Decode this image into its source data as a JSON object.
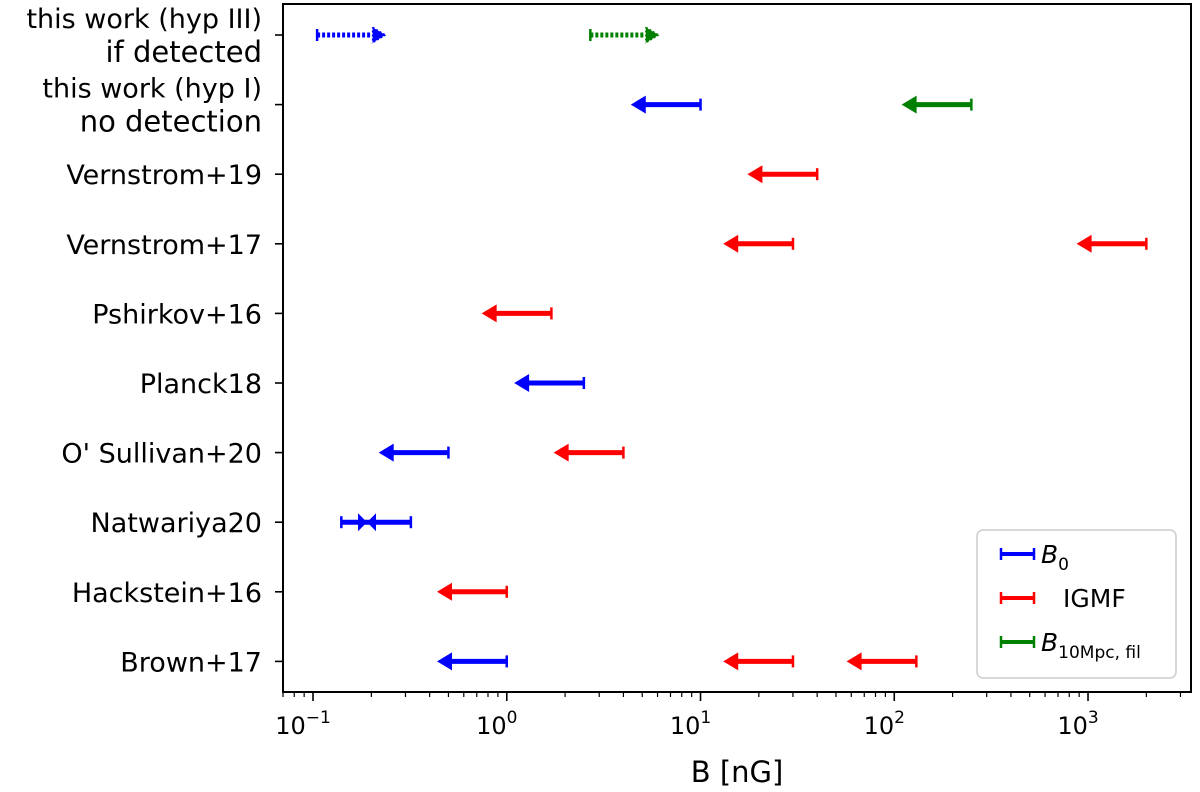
{
  "chart_data": {
    "type": "errorbar",
    "xlabel": "B [nG]",
    "xscale": "log",
    "xlim": [
      0.07,
      3400
    ],
    "x_ticks": [
      {
        "value": 0.1,
        "base": "10",
        "exp": "−1"
      },
      {
        "value": 1,
        "base": "10",
        "exp": "0"
      },
      {
        "value": 10,
        "base": "10",
        "exp": "1"
      },
      {
        "value": 100,
        "base": "10",
        "exp": "2"
      },
      {
        "value": 1000,
        "base": "10",
        "exp": "3"
      }
    ],
    "categories": [
      {
        "label": "this work (hyp III)",
        "sublabel": "if detected"
      },
      {
        "label": "this work (hyp I)",
        "sublabel": "no detection"
      },
      {
        "label": "Vernstrom+19",
        "sublabel": ""
      },
      {
        "label": "Vernstrom+17",
        "sublabel": ""
      },
      {
        "label": "Pshirkov+16",
        "sublabel": ""
      },
      {
        "label": "Planck18",
        "sublabel": ""
      },
      {
        "label": "O' Sullivan+20",
        "sublabel": ""
      },
      {
        "label": "Natwariya20",
        "sublabel": ""
      },
      {
        "label": "Hackstein+16",
        "sublabel": ""
      },
      {
        "label": "Brown+17",
        "sublabel": ""
      }
    ],
    "series": [
      {
        "name_base": "B",
        "name_sub": "0",
        "color": "#0000ff"
      },
      {
        "name_base": "IGMF",
        "name_sub": "",
        "color": "#ff0000"
      },
      {
        "name_base": "B",
        "name_sub": "10Mpc, fil",
        "color": "#008000"
      }
    ],
    "marks": [
      {
        "row": 0,
        "series": 0,
        "kind": "lower_limit",
        "style": "dotted",
        "value": 0.105
      },
      {
        "row": 0,
        "series": 2,
        "kind": "lower_limit",
        "style": "dotted",
        "value": 2.7
      },
      {
        "row": 1,
        "series": 0,
        "kind": "upper_limit",
        "value": 10
      },
      {
        "row": 1,
        "series": 2,
        "kind": "upper_limit",
        "value": 250
      },
      {
        "row": 2,
        "series": 1,
        "kind": "upper_limit",
        "value": 40
      },
      {
        "row": 3,
        "series": 1,
        "kind": "upper_limit",
        "value": 30
      },
      {
        "row": 3,
        "series": 1,
        "kind": "upper_limit",
        "value": 2000
      },
      {
        "row": 4,
        "series": 1,
        "kind": "upper_limit",
        "value": 1.7
      },
      {
        "row": 5,
        "series": 0,
        "kind": "upper_limit",
        "value": 2.5
      },
      {
        "row": 6,
        "series": 0,
        "kind": "upper_limit",
        "value": 0.5
      },
      {
        "row": 6,
        "series": 1,
        "kind": "upper_limit",
        "value": 4
      },
      {
        "row": 7,
        "series": 0,
        "kind": "range",
        "low": 0.14,
        "high": 0.32,
        "mid": 0.19
      },
      {
        "row": 8,
        "series": 1,
        "kind": "upper_limit",
        "value": 1
      },
      {
        "row": 9,
        "series": 0,
        "kind": "upper_limit",
        "value": 1
      },
      {
        "row": 9,
        "series": 1,
        "kind": "upper_limit",
        "value": 30
      },
      {
        "row": 9,
        "series": 1,
        "kind": "upper_limit",
        "value": 130
      }
    ],
    "legend_position": "lower-right"
  }
}
